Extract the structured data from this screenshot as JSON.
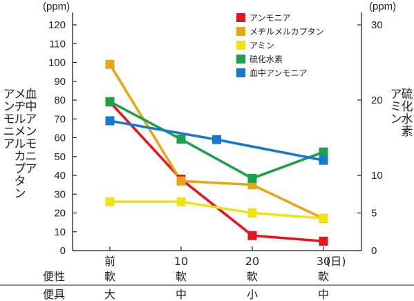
{
  "chart_data": {
    "type": "line",
    "unit_left": "(ppm)",
    "unit_right": "(ppm)",
    "ylabel_left": [
      [
        "血",
        "中",
        "ア",
        "ン",
        "モ",
        "ニ",
        "ア"
      ],
      [
        "メ",
        "ヂ",
        "ル",
        "メ",
        "ル",
        "カ",
        "プ",
        "タ",
        "ン"
      ],
      [
        "ア",
        "ン",
        "モ",
        "ニ",
        "ア"
      ]
    ],
    "ylabel_right": [
      [
        "硫",
        "化",
        "水",
        "素"
      ],
      [
        "ア",
        "ミ",
        "ン"
      ]
    ],
    "yticks_left": [
      "0",
      "10",
      "20",
      "30",
      "40",
      "50",
      "60",
      "70",
      "80",
      "90",
      "100",
      "110",
      "120"
    ],
    "yticks_right": [
      "0",
      "5",
      "10",
      "20",
      "30"
    ],
    "ylim_left": [
      0,
      120
    ],
    "ylim_right": [
      0,
      30
    ],
    "x_ticks": [
      {
        "x": 0,
        "top": "前",
        "bottom": "軟"
      },
      {
        "x": 10,
        "top": "10",
        "bottom": "軟"
      },
      {
        "x": 20,
        "top": "20",
        "bottom": "軟"
      },
      {
        "x": 30,
        "top": "30",
        "bottom": "軟"
      }
    ],
    "x_unit": "(日)",
    "xlim": [
      0,
      30
    ],
    "rows": [
      {
        "label": "便性",
        "values": [
          "軟",
          "軟",
          "軟",
          "軟"
        ]
      },
      {
        "label": "便具",
        "values": [
          "大",
          "中",
          "小",
          "中"
        ]
      }
    ],
    "series": [
      {
        "name": "アンモニア",
        "axis": "left",
        "color": "#e8141a",
        "x": [
          0,
          10,
          20,
          30
        ],
        "y": [
          79,
          38,
          8,
          5
        ]
      },
      {
        "name": "メヂルメルカプタン",
        "axis": "left",
        "color": "#eaa512",
        "x": [
          0,
          10,
          20,
          30
        ],
        "y": [
          99,
          37,
          35,
          17
        ]
      },
      {
        "name": "アミン",
        "axis": "right",
        "color": "#ece319",
        "x": [
          0,
          10,
          20,
          30
        ],
        "y": [
          6.5,
          6.5,
          5,
          4.3
        ]
      },
      {
        "name": "硫化水素",
        "axis": "right",
        "color": "#1ba14c",
        "x": [
          0,
          10,
          20,
          30
        ],
        "y": [
          19.8,
          14.8,
          9.6,
          13.1
        ]
      },
      {
        "name": "血中アンモニア",
        "axis": "left",
        "color": "#1578d1",
        "x": [
          0,
          15,
          30
        ],
        "y": [
          69,
          59,
          48
        ]
      }
    ],
    "grid": false,
    "legend_position": "top-right"
  }
}
